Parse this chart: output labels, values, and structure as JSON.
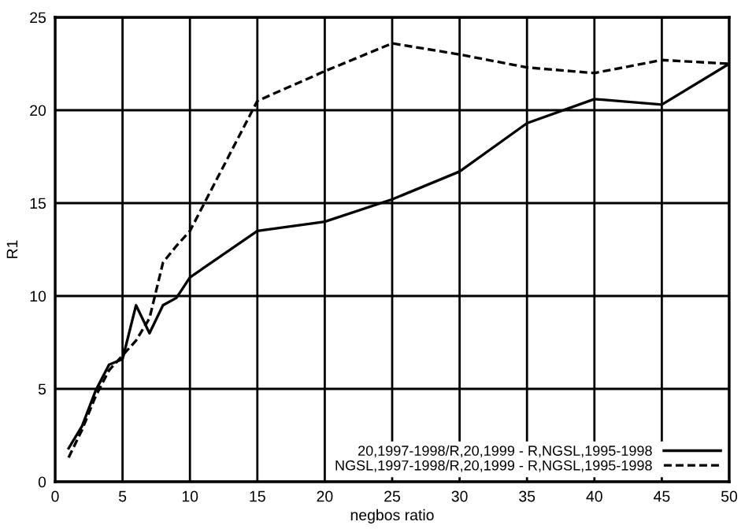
{
  "chart_data": {
    "type": "line",
    "xlabel": "negbos ratio",
    "ylabel": "R1",
    "x": [
      1,
      2,
      3,
      4,
      5,
      6,
      7,
      8,
      9,
      10,
      15,
      20,
      25,
      30,
      35,
      40,
      45,
      50
    ],
    "series": [
      {
        "name": "20,1997-1998/R,20,1999 - R,NGSL,1995-1998",
        "color": "#000000",
        "line_style": "solid",
        "values": [
          1.8,
          3.0,
          4.9,
          6.3,
          6.6,
          9.5,
          8.0,
          9.5,
          9.9,
          11.0,
          13.5,
          14.0,
          15.2,
          16.7,
          19.3,
          20.6,
          20.3,
          22.5
        ]
      },
      {
        "name": "NGSL,1997-1998/R,20,1999 - R,NGSL,1995-1998",
        "color": "#000000",
        "line_style": "dashed",
        "values": [
          1.3,
          2.8,
          4.6,
          6.0,
          6.8,
          7.6,
          8.8,
          11.8,
          12.7,
          13.5,
          20.5,
          22.1,
          23.6,
          23.0,
          22.3,
          22.0,
          22.7,
          22.5
        ]
      }
    ],
    "xlim": [
      0,
      50
    ],
    "xticks": [
      0,
      5,
      10,
      15,
      20,
      25,
      30,
      35,
      40,
      45,
      50
    ],
    "ylim": [
      0,
      25
    ],
    "yticks": [
      0,
      5,
      10,
      15,
      20,
      25
    ],
    "grid": true,
    "legend": "bottom right",
    "marker": "none"
  }
}
